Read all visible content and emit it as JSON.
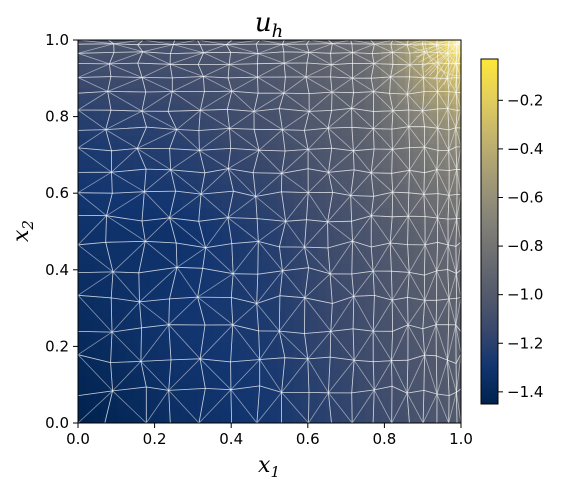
{
  "chart_data": {
    "type": "heatmap",
    "title": {
      "main": "u",
      "sub": "h"
    },
    "xlabel": {
      "main": "x",
      "sub": "1"
    },
    "ylabel": {
      "main": "x",
      "sub": "2"
    },
    "xlim": [
      0.0,
      1.0
    ],
    "ylim": [
      0.0,
      1.0
    ],
    "xticks": [
      "0.0",
      "0.2",
      "0.4",
      "0.6",
      "0.8",
      "1.0"
    ],
    "yticks": [
      "0.0",
      "0.2",
      "0.4",
      "0.6",
      "0.8",
      "1.0"
    ],
    "colorbar": {
      "range": [
        -1.45,
        -0.03
      ],
      "ticks": [
        -1.4,
        -1.2,
        -1.0,
        -0.8,
        -0.6,
        -0.4,
        -0.2
      ],
      "tick_labels": [
        "−1.4",
        "−1.2",
        "−1.0",
        "−0.8",
        "−0.6",
        "−0.4",
        "−0.2"
      ],
      "colormap": "cividis",
      "colors": [
        "#00224e",
        "#123570",
        "#3b496c",
        "#575d6d",
        "#707173",
        "#8a8779",
        "#a69d75",
        "#c4b56c",
        "#e4cf5b",
        "#fee838"
      ]
    },
    "field_samples": {
      "x": [
        0.0,
        0.25,
        0.5,
        0.75,
        1.0
      ],
      "y": [
        0.0,
        0.25,
        0.5,
        0.75,
        1.0
      ],
      "values": [
        [
          -1.45,
          -1.35,
          -1.28,
          -1.15,
          -1.0
        ],
        [
          -1.38,
          -1.3,
          -1.25,
          -1.1,
          -0.95
        ],
        [
          -1.32,
          -1.32,
          -1.22,
          -1.05,
          -0.85
        ],
        [
          -1.25,
          -1.2,
          -1.1,
          -0.95,
          -0.6
        ],
        [
          -1.05,
          -1.05,
          -0.98,
          -0.85,
          -0.03
        ]
      ]
    },
    "mesh": {
      "edge_color": "#ffffff",
      "refined_near": [
        1.0,
        1.0
      ]
    }
  }
}
